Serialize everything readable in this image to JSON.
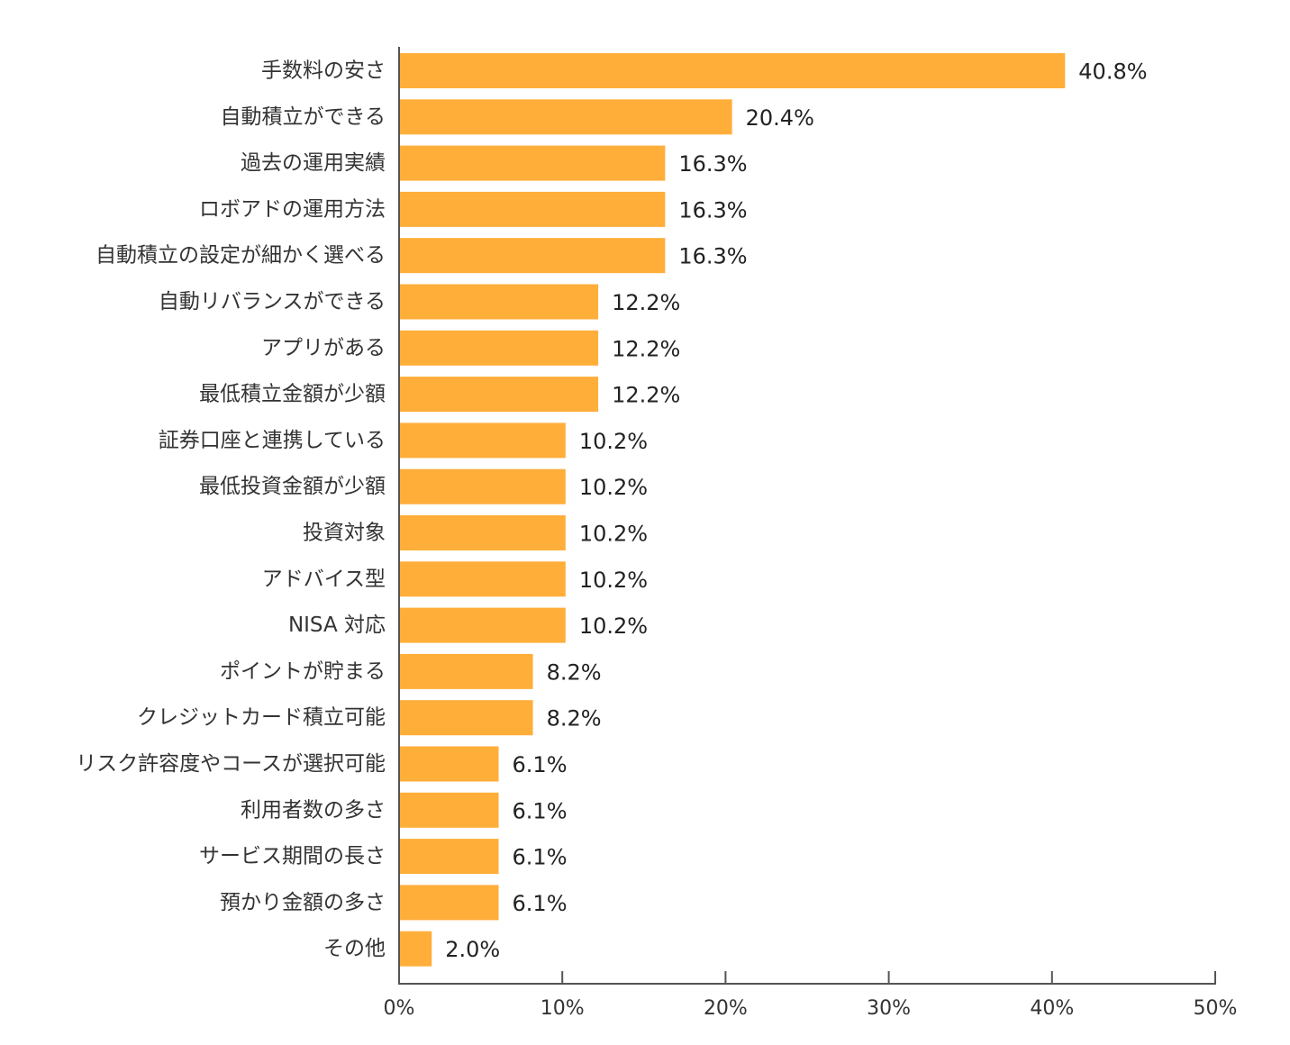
{
  "chart_data": {
    "type": "bar",
    "orientation": "horizontal",
    "title": "",
    "xlabel": "",
    "ylabel": "",
    "categories": [
      "手数料の安さ",
      "自動積立ができる",
      "過去の運用実績",
      "ロボアドの運用方法",
      "自動積立の設定が細かく選べる",
      "自動リバランスができる",
      "アプリがある",
      "最低積立金額が少額",
      "証券口座と連携している",
      "最低投資金額が少額",
      "投資対象",
      "アドバイス型",
      "NISA 対応",
      "ポイントが貯まる",
      "クレジットカード積立可能",
      "リスク許容度やコースが選択可能",
      "利用者数の多さ",
      "サービス期間の長さ",
      "預かり金額の多さ",
      "その他"
    ],
    "values": [
      40.8,
      20.4,
      16.3,
      16.3,
      16.3,
      12.2,
      12.2,
      12.2,
      10.2,
      10.2,
      10.2,
      10.2,
      10.2,
      8.2,
      8.2,
      6.1,
      6.1,
      6.1,
      6.1,
      2.0
    ],
    "value_labels": [
      "40.8%",
      "20.4%",
      "16.3%",
      "16.3%",
      "16.3%",
      "12.2%",
      "12.2%",
      "12.2%",
      "10.2%",
      "10.2%",
      "10.2%",
      "10.2%",
      "10.2%",
      "8.2%",
      "8.2%",
      "6.1%",
      "6.1%",
      "6.1%",
      "6.1%",
      "2.0%"
    ],
    "xlim": [
      0,
      50
    ],
    "xticks": [
      0,
      10,
      20,
      30,
      40,
      50
    ],
    "xtick_labels": [
      "0%",
      "10%",
      "20%",
      "30%",
      "40%",
      "50%"
    ],
    "grid": false,
    "legend": "none",
    "bar_color": "#FFAE3A"
  }
}
